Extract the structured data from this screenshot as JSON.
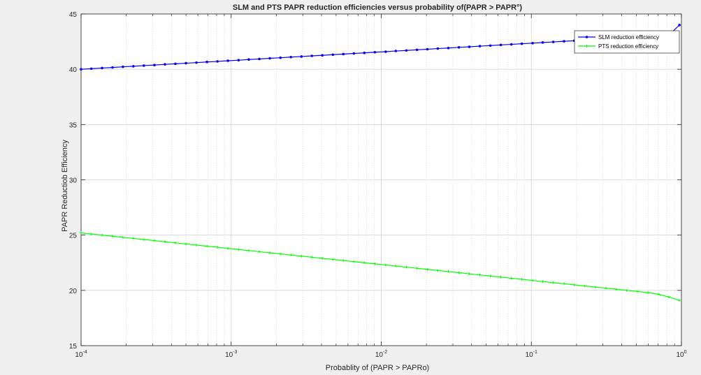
{
  "chart_data": {
    "type": "line",
    "title": "SLM and PTS PAPR reduction efficiencies versus probability of(PAPR > PAPR°)",
    "xlabel": "Probablity of (PAPR > PAPRo)",
    "ylabel": "PAPR Reductiob Efficiency",
    "x_scale": "log",
    "xlim": [
      0.0001,
      1
    ],
    "ylim": [
      15,
      45
    ],
    "grid": true,
    "legend_position": "top-right",
    "x_ticks": [
      {
        "value": 0.0001,
        "base": "10",
        "exp": "-4"
      },
      {
        "value": 0.001,
        "base": "10",
        "exp": "-3"
      },
      {
        "value": 0.01,
        "base": "10",
        "exp": "-2"
      },
      {
        "value": 0.1,
        "base": "10",
        "exp": "-1"
      },
      {
        "value": 1,
        "base": "10",
        "exp": "0"
      }
    ],
    "y_ticks": [
      "15",
      "20",
      "25",
      "30",
      "35",
      "40",
      "45"
    ],
    "series": [
      {
        "name": "SLM reduction efficiency",
        "color": "#0000ff",
        "marker": "dot",
        "x": [
          0.0001,
          0.000117,
          0.000138,
          0.000162,
          0.00019,
          0.000223,
          0.000262,
          0.000308,
          0.000362,
          0.000425,
          0.0005,
          0.000587,
          0.00069,
          0.00081,
          0.000952,
          0.00112,
          0.00131,
          0.00154,
          0.00181,
          0.00213,
          0.0025,
          0.00294,
          0.00345,
          0.00405,
          0.00476,
          0.00559,
          0.00657,
          0.00772,
          0.00907,
          0.0107,
          0.0125,
          0.0147,
          0.0173,
          0.0203,
          0.0238,
          0.028,
          0.0329,
          0.0386,
          0.0454,
          0.0533,
          0.0626,
          0.0736,
          0.0864,
          0.102,
          0.119,
          0.14,
          0.165,
          0.193,
          0.227,
          0.267,
          0.314,
          0.368,
          0.433,
          0.509,
          0.598,
          0.702,
          0.825,
          0.97
        ],
        "y": [
          40.0,
          40.05,
          40.11,
          40.16,
          40.22,
          40.27,
          40.33,
          40.38,
          40.44,
          40.49,
          40.55,
          40.6,
          40.66,
          40.71,
          40.77,
          40.82,
          40.88,
          40.93,
          40.99,
          41.04,
          41.1,
          41.15,
          41.21,
          41.26,
          41.32,
          41.37,
          41.43,
          41.48,
          41.54,
          41.59,
          41.65,
          41.7,
          41.76,
          41.81,
          41.87,
          41.92,
          41.98,
          42.03,
          42.09,
          42.14,
          42.2,
          42.25,
          42.31,
          42.36,
          42.42,
          42.47,
          42.53,
          42.58,
          42.64,
          42.69,
          42.75,
          42.8,
          42.86,
          42.91,
          42.97,
          43.02,
          43.08,
          44.0
        ]
      },
      {
        "name": "PTS reduction efficiency",
        "color": "#00ff00",
        "marker": "plus",
        "x": [
          0.0001,
          0.000117,
          0.000138,
          0.000162,
          0.00019,
          0.000223,
          0.000262,
          0.000308,
          0.000362,
          0.000425,
          0.0005,
          0.000587,
          0.00069,
          0.00081,
          0.000952,
          0.00112,
          0.00131,
          0.00154,
          0.00181,
          0.00213,
          0.0025,
          0.00294,
          0.00345,
          0.00405,
          0.00476,
          0.00559,
          0.00657,
          0.00772,
          0.00907,
          0.0107,
          0.0125,
          0.0147,
          0.0173,
          0.0203,
          0.0238,
          0.028,
          0.0329,
          0.0386,
          0.0454,
          0.0533,
          0.0626,
          0.0736,
          0.0864,
          0.102,
          0.119,
          0.14,
          0.165,
          0.193,
          0.227,
          0.267,
          0.314,
          0.368,
          0.433,
          0.509,
          0.598,
          0.702,
          0.825,
          0.97
        ],
        "y": [
          25.2,
          25.1,
          25.0,
          24.9,
          24.8,
          24.7,
          24.6,
          24.5,
          24.4,
          24.3,
          24.2,
          24.1,
          24.0,
          23.9,
          23.8,
          23.7,
          23.6,
          23.5,
          23.4,
          23.3,
          23.2,
          23.1,
          23.0,
          22.9,
          22.8,
          22.7,
          22.6,
          22.5,
          22.4,
          22.3,
          22.2,
          22.1,
          22.0,
          21.9,
          21.8,
          21.7,
          21.6,
          21.5,
          21.4,
          21.3,
          21.2,
          21.1,
          21.0,
          20.9,
          20.8,
          20.7,
          20.6,
          20.5,
          20.4,
          20.3,
          20.2,
          20.1,
          20.0,
          19.9,
          19.8,
          19.65,
          19.4,
          19.1
        ]
      }
    ]
  }
}
